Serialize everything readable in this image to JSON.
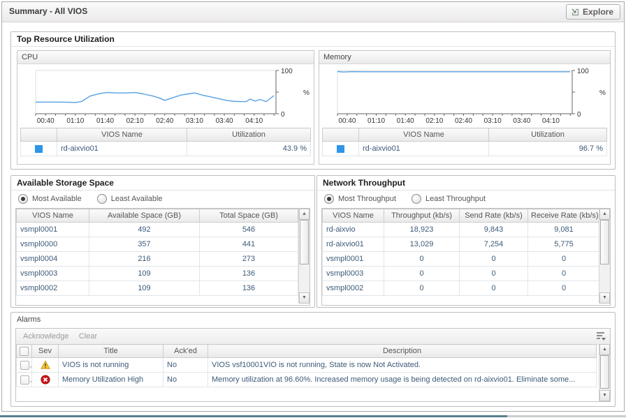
{
  "header": {
    "title": "Summary - All VIOS",
    "explore_label": "Explore"
  },
  "colors": {
    "chart_line": "#55a1e3",
    "legend_swatch": "#2e95ea",
    "warning": "#f8c831",
    "error": "#cc1414"
  },
  "panels": {
    "top_resource": {
      "title": "Top Resource Utilization"
    },
    "storage": {
      "title": "Available Storage Space",
      "radios": [
        {
          "label": "Most Available",
          "selected": true
        },
        {
          "label": "Least Available",
          "selected": false
        }
      ],
      "columns": [
        "VIOS Name",
        "Available Space (GB)",
        "Total Space (GB)"
      ],
      "rows": [
        [
          "vsmpl0001",
          "492",
          "546"
        ],
        [
          "vsmpl0000",
          "357",
          "441"
        ],
        [
          "vsmpl0004",
          "216",
          "273"
        ],
        [
          "vsmpl0003",
          "109",
          "136"
        ],
        [
          "vsmpl0002",
          "109",
          "136"
        ]
      ]
    },
    "network": {
      "title": "Network Throughput",
      "radios": [
        {
          "label": "Most Throughput",
          "selected": true
        },
        {
          "label": "Least Throughput",
          "selected": false
        }
      ],
      "columns": [
        "VIOS Name",
        "Throughput (kb/s)",
        "Send Rate (kb/s)",
        "Receive Rate (kb/s)"
      ],
      "rows": [
        [
          "rd-aixvio",
          "18,923",
          "9,843",
          "9,081"
        ],
        [
          "rd-aixvio01",
          "13,029",
          "7,254",
          "5,775"
        ],
        [
          "vsmpl0001",
          "0",
          "0",
          "0"
        ],
        [
          "vsmpl0003",
          "0",
          "0",
          "0"
        ],
        [
          "vsmpl0002",
          "0",
          "0",
          "0"
        ]
      ]
    },
    "alarms": {
      "title": "Alarms",
      "actions": [
        "Acknowledge",
        "Clear"
      ],
      "columns": [
        "Sev",
        "Title",
        "Ack'ed",
        "Description"
      ],
      "rows": [
        {
          "severity": "warning",
          "title": "VIOS is not running",
          "acked": "No",
          "description": "VIOS vsf10001VIO is not running, State is now Not Activated."
        },
        {
          "severity": "error",
          "title": "Memory Utilization High",
          "acked": "No",
          "description": "Memory utilization at 96.60%. Increased memory usage is being detected on rd-aixvio01. Eliminate some..."
        }
      ]
    }
  },
  "chart_data": [
    {
      "type": "line",
      "title": "CPU",
      "ylabel": "%",
      "ylim": [
        0,
        100
      ],
      "xlim": [
        30,
        272
      ],
      "x_minor_step": 10,
      "x_tick_labels": [
        {
          "t": 40,
          "label": "00:40"
        },
        {
          "t": 70,
          "label": "01:10"
        },
        {
          "t": 100,
          "label": "01:40"
        },
        {
          "t": 130,
          "label": "02:10"
        },
        {
          "t": 160,
          "label": "02:40"
        },
        {
          "t": 190,
          "label": "03:10"
        },
        {
          "t": 220,
          "label": "03:40"
        },
        {
          "t": 250,
          "label": "04:10"
        }
      ],
      "series": [
        {
          "name": "rd-aixvio01",
          "points": [
            [
              30,
              27
            ],
            [
              42,
              27
            ],
            [
              55,
              27
            ],
            [
              64,
              26.5
            ],
            [
              70,
              26
            ],
            [
              76,
              28
            ],
            [
              85,
              41
            ],
            [
              95,
              47
            ],
            [
              102,
              49
            ],
            [
              112,
              48
            ],
            [
              122,
              48
            ],
            [
              130,
              49
            ],
            [
              138,
              46
            ],
            [
              148,
              41
            ],
            [
              155,
              36
            ],
            [
              160,
              31
            ],
            [
              168,
              37
            ],
            [
              176,
              43
            ],
            [
              184,
              46
            ],
            [
              190,
              48
            ],
            [
              198,
              43
            ],
            [
              206,
              39
            ],
            [
              214,
              35
            ],
            [
              222,
              31
            ],
            [
              228,
              29
            ],
            [
              236,
              28
            ],
            [
              242,
              28
            ],
            [
              246,
              34
            ],
            [
              251,
              29
            ],
            [
              256,
              33
            ],
            [
              262,
              28
            ],
            [
              270,
              42
            ]
          ]
        }
      ],
      "legend": {
        "columns": [
          "VIOS Name",
          "Utilization"
        ],
        "rows": [
          {
            "name": "rd-aixvio01",
            "value": "43.9 %"
          }
        ]
      }
    },
    {
      "type": "line",
      "title": "Memory",
      "ylabel": "%",
      "ylim": [
        0,
        100
      ],
      "xlim": [
        30,
        272
      ],
      "x_minor_step": 10,
      "x_tick_labels": [
        {
          "t": 40,
          "label": "00:40"
        },
        {
          "t": 70,
          "label": "01:10"
        },
        {
          "t": 100,
          "label": "01:40"
        },
        {
          "t": 130,
          "label": "02:10"
        },
        {
          "t": 160,
          "label": "02:40"
        },
        {
          "t": 190,
          "label": "03:10"
        },
        {
          "t": 220,
          "label": "03:40"
        },
        {
          "t": 250,
          "label": "04:10"
        }
      ],
      "series": [
        {
          "name": "rd-aixvio01",
          "points": [
            [
              30,
              97.6
            ],
            [
              36,
              96.4
            ],
            [
              44,
              97.2
            ],
            [
              56,
              97.1
            ],
            [
              120,
              97.1
            ],
            [
              200,
              97.1
            ],
            [
              270,
              97.1
            ]
          ]
        }
      ],
      "legend": {
        "columns": [
          "VIOS Name",
          "Utilization"
        ],
        "rows": [
          {
            "name": "rd-aixvio01",
            "value": "96.7 %"
          }
        ]
      }
    }
  ]
}
